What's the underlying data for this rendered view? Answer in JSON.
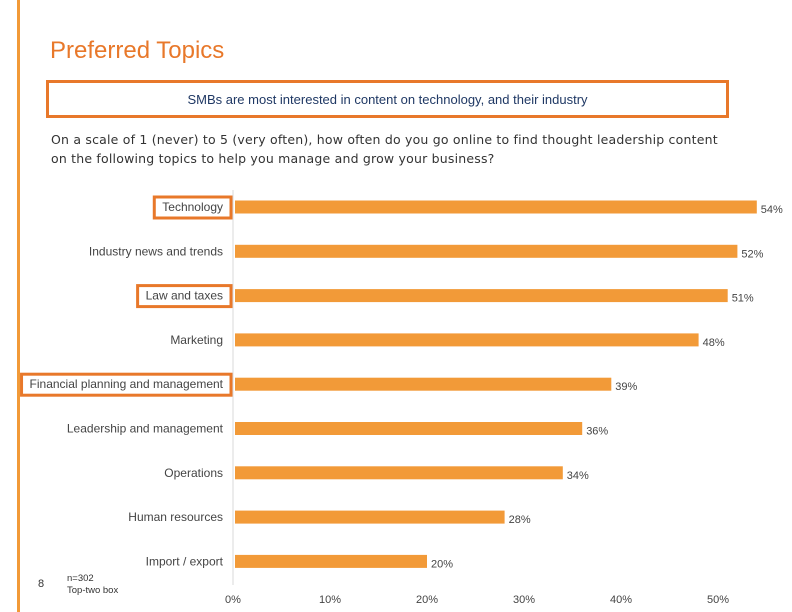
{
  "page": {
    "title": "Preferred Topics",
    "subtitle": "SMBs are most interested in content on technology, and their industry",
    "question_line1": "On a scale of 1 (never) to 5 (very often), how often do you go online to find thought leadership content",
    "question_line2": "on the following topics to help you manage and grow your business?",
    "page_number": "8",
    "note_line1": "n=302",
    "note_line2": "Top-two box"
  },
  "colors": {
    "accent": "#e8782a",
    "bar": "#f29a38",
    "highlight_box": "#e8782a"
  },
  "chart_data": {
    "type": "bar",
    "orientation": "horizontal",
    "categories": [
      "Technology",
      "Industry news and trends",
      "Law and taxes",
      "Marketing",
      "Financial planning and management",
      "Leadership and management",
      "Operations",
      "Human resources",
      "Import / export"
    ],
    "values": [
      54,
      52,
      51,
      48,
      39,
      36,
      34,
      28,
      20
    ],
    "value_labels": [
      "54%",
      "52%",
      "51%",
      "48%",
      "39%",
      "36%",
      "34%",
      "28%",
      "20%"
    ],
    "highlighted": [
      "Technology",
      "Law and taxes",
      "Financial planning and management"
    ],
    "xlim": [
      0,
      54
    ],
    "xticks": [
      0,
      10,
      20,
      30,
      40,
      50
    ],
    "xtick_labels": [
      "0%",
      "10%",
      "20%",
      "30%",
      "40%",
      "50%"
    ],
    "grid": false,
    "legend": "none"
  }
}
